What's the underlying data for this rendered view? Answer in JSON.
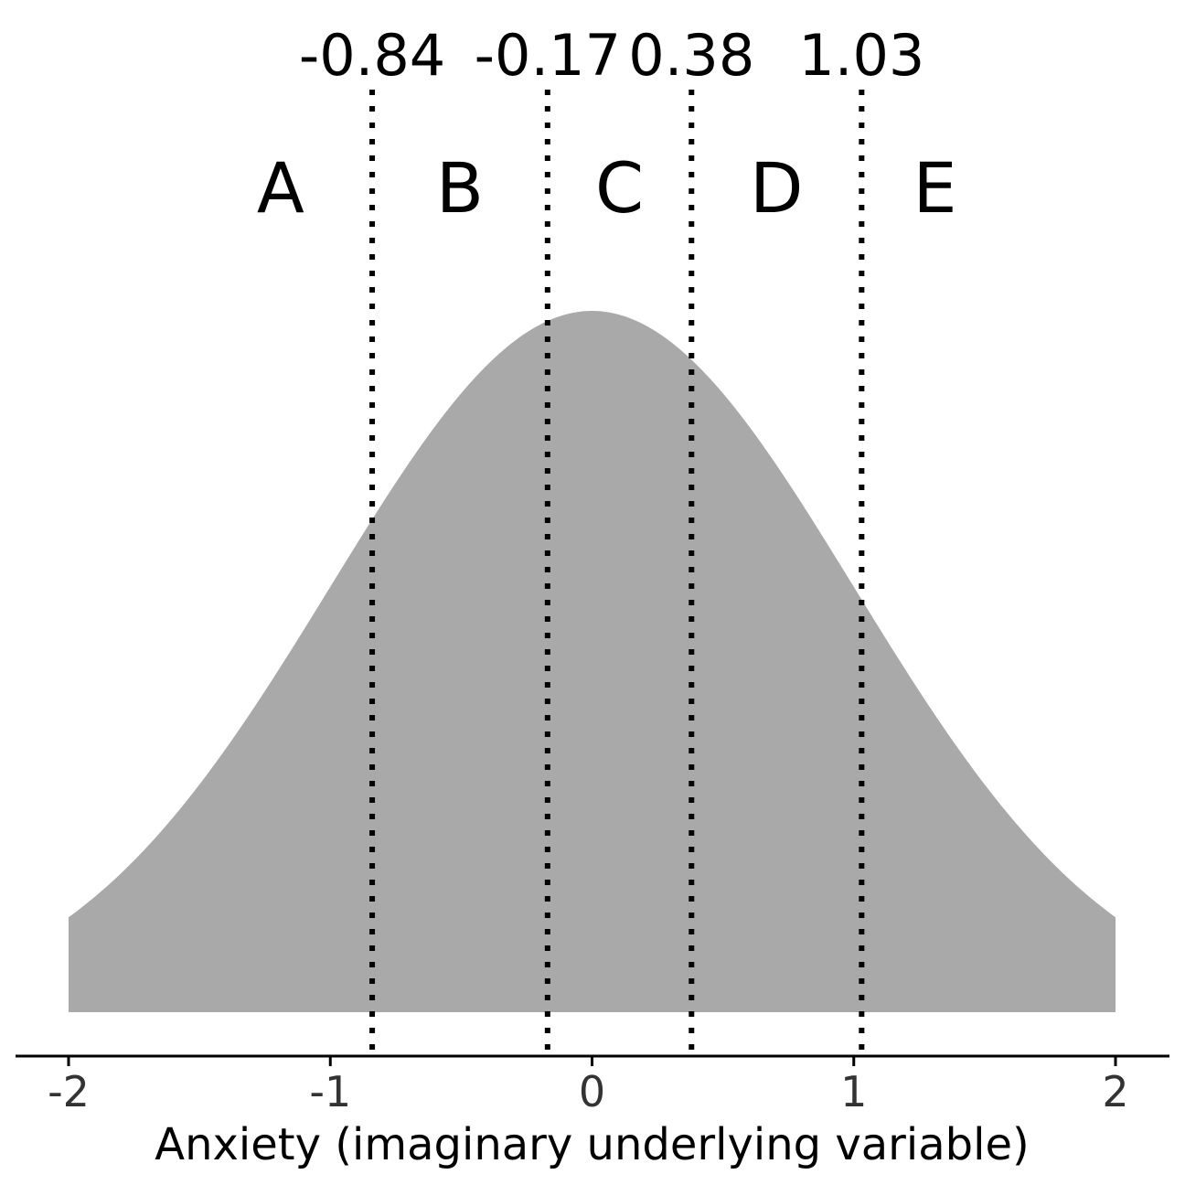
{
  "chart_data": {
    "type": "area",
    "title": "",
    "xlabel": "Anxiety (imaginary underlying variable)",
    "ylabel": "",
    "xlim": [
      -2,
      2
    ],
    "x_ticks": [
      -2,
      -1,
      0,
      1,
      2
    ],
    "x_tick_labels": [
      "-2",
      "-1",
      "0",
      "1",
      "2"
    ],
    "distribution": {
      "name": "normal",
      "mean": 0,
      "sd": 1
    },
    "thresholds": [
      {
        "value": -0.84,
        "label": "-0.84"
      },
      {
        "value": -0.17,
        "label": "-0.17"
      },
      {
        "value": 0.38,
        "label": "0.38"
      },
      {
        "value": 1.03,
        "label": "1.03"
      }
    ],
    "categories": [
      "A",
      "B",
      "C",
      "D",
      "E"
    ],
    "grid": false,
    "legend": "none",
    "colors": {
      "fill": "#a8a9a8",
      "threshold_line": "#000000",
      "axis": "#000000",
      "tick_label": "#333333"
    }
  }
}
